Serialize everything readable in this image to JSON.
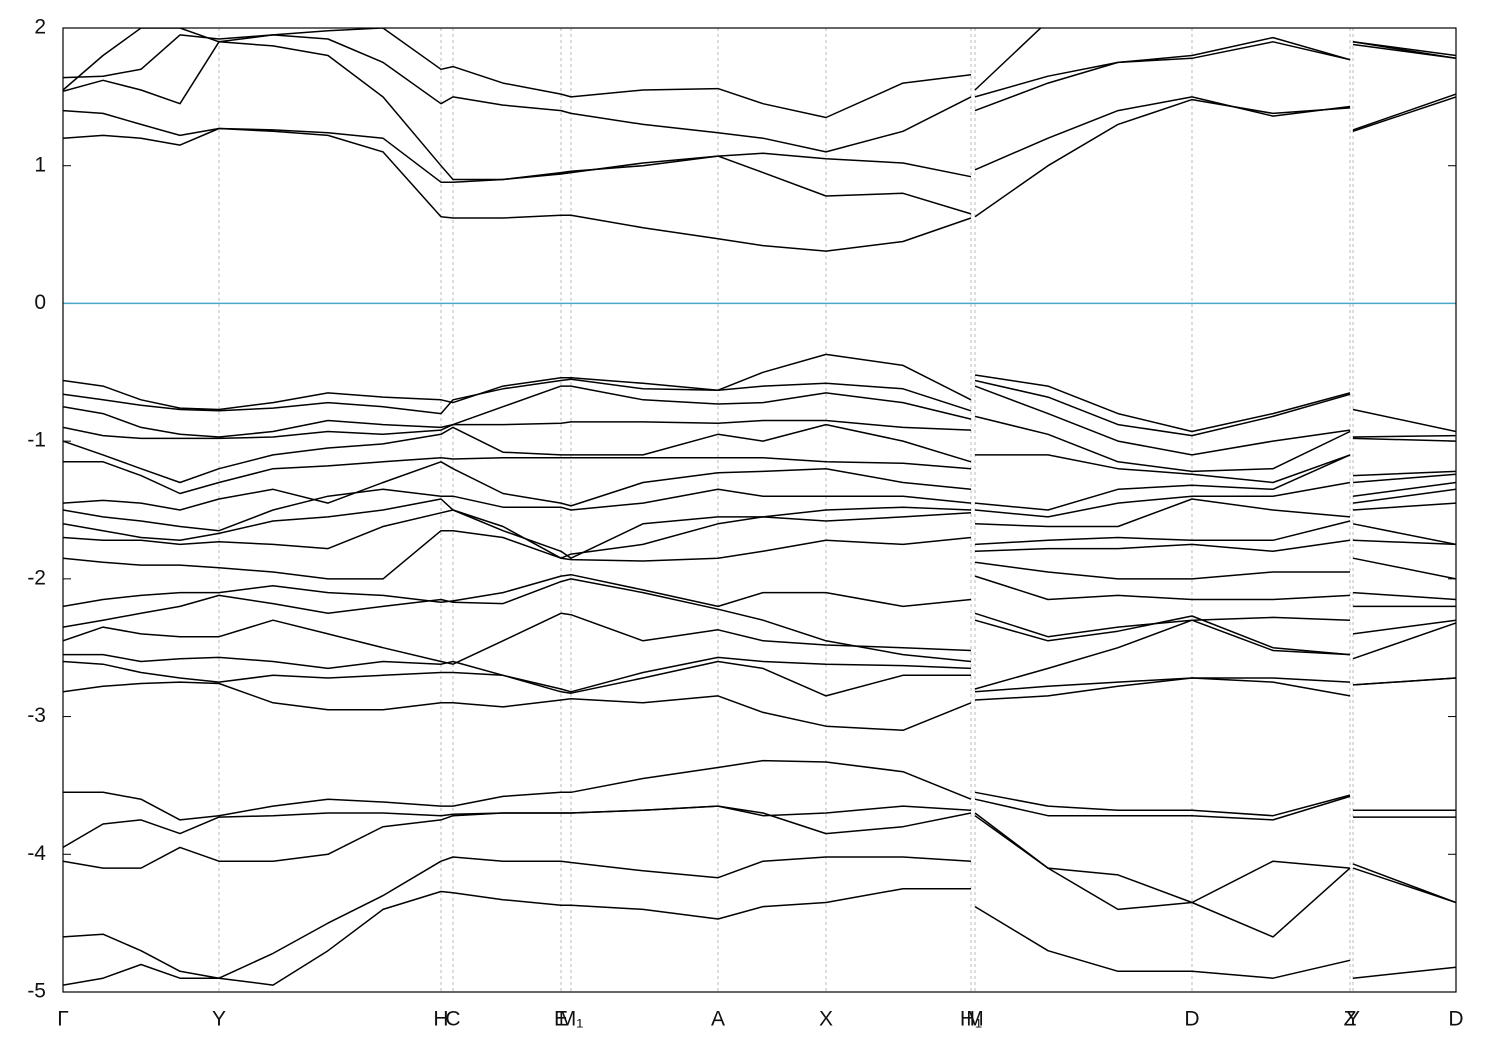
{
  "chart_data": {
    "type": "line",
    "xlim": [
      0,
      1393
    ],
    "ylim": [
      -5,
      2
    ],
    "yticks": [
      -5,
      -4,
      -3,
      -2,
      -1,
      0,
      1,
      2
    ],
    "xticks": [
      {
        "value": 0,
        "label": "Γ"
      },
      {
        "value": 156,
        "label": "Y"
      },
      {
        "value": 378,
        "label": "H"
      },
      {
        "value": 390,
        "label": "C"
      },
      {
        "value": 498,
        "label": "E"
      },
      {
        "value": 508,
        "label": "M₁"
      },
      {
        "value": 655,
        "label": "A"
      },
      {
        "value": 763,
        "label": "X"
      },
      {
        "value": 908,
        "label": "H₁"
      },
      {
        "value": 912,
        "label": "M"
      },
      {
        "value": 1129,
        "label": "D"
      },
      {
        "value": 1287,
        "label": "Z"
      },
      {
        "value": 1290,
        "label": "Y"
      },
      {
        "value": 1393,
        "label": "D"
      }
    ],
    "grid": true,
    "line_color": "#000000",
    "hline": {
      "value": 0,
      "color": "#4aa8c8"
    },
    "x": [
      0,
      40,
      78,
      117,
      156,
      210,
      265,
      320,
      378,
      390,
      440,
      498,
      508,
      580,
      655,
      700,
      763,
      840,
      908,
      910,
      912,
      985,
      1055,
      1129,
      1210,
      1287,
      1288.5,
      1290,
      1393
    ],
    "series": [
      {
        "values": [
          1.2,
          1.22,
          1.2,
          1.15,
          1.27,
          1.25,
          1.22,
          1.1,
          0.63,
          0.62,
          0.62,
          0.64,
          0.64,
          0.55,
          0.47,
          0.42,
          0.38,
          0.45,
          0.62,
          null,
          0.63,
          1.0,
          1.3,
          1.48,
          1.38,
          1.42,
          null,
          1.25,
          1.5
        ]
      },
      {
        "values": [
          1.4,
          1.38,
          1.3,
          1.22,
          1.27,
          1.26,
          1.24,
          1.2,
          0.88,
          0.88,
          0.9,
          0.94,
          0.95,
          1.02,
          1.07,
          0.95,
          0.78,
          0.8,
          0.65,
          null,
          0.97,
          1.2,
          1.4,
          1.5,
          1.36,
          1.43,
          null,
          1.26,
          1.52
        ]
      },
      {
        "values": [
          1.54,
          1.62,
          1.55,
          1.45,
          1.9,
          1.87,
          1.8,
          1.5,
          1.0,
          0.9,
          0.9,
          0.95,
          0.96,
          1.0,
          1.07,
          1.09,
          1.05,
          1.02,
          0.92,
          null,
          1.4,
          1.6,
          1.75,
          1.78,
          1.9,
          1.77,
          null,
          1.9,
          1.78
        ]
      },
      {
        "values": [
          1.64,
          1.65,
          1.7,
          1.95,
          1.92,
          1.95,
          1.92,
          1.75,
          1.45,
          1.5,
          1.44,
          1.4,
          1.38,
          1.3,
          1.24,
          1.2,
          1.1,
          1.25,
          1.5,
          null,
          1.5,
          1.65,
          1.75,
          1.8,
          1.93,
          1.77,
          null,
          1.9,
          1.8
        ]
      },
      {
        "values": [
          1.55,
          1.8,
          2.0,
          2.0,
          1.9,
          1.95,
          1.98,
          2.0,
          1.7,
          1.72,
          1.6,
          1.52,
          1.5,
          1.55,
          1.56,
          1.45,
          1.35,
          1.6,
          1.66,
          null,
          1.55,
          2.05,
          null,
          null,
          null,
          null,
          null,
          1.88,
          1.78
        ]
      },
      {
        "values": [
          -0.56,
          -0.6,
          -0.7,
          -0.76,
          -0.77,
          -0.72,
          -0.65,
          -0.68,
          -0.7,
          -0.72,
          -0.6,
          -0.54,
          -0.54,
          -0.58,
          -0.63,
          -0.5,
          -0.37,
          -0.45,
          -0.7,
          null,
          -0.52,
          -0.6,
          -0.8,
          -0.93,
          -0.8,
          -0.65,
          null,
          -0.77,
          -0.93
        ]
      },
      {
        "values": [
          -0.66,
          -0.7,
          -0.74,
          -0.77,
          -0.78,
          -0.76,
          -0.72,
          -0.75,
          -0.8,
          -0.7,
          -0.62,
          -0.56,
          -0.55,
          -0.62,
          -0.63,
          -0.6,
          -0.58,
          -0.62,
          -0.78,
          null,
          -0.56,
          -0.68,
          -0.88,
          -0.96,
          -0.82,
          -0.66,
          null,
          -0.97,
          -0.96
        ]
      },
      {
        "values": [
          -0.75,
          -0.8,
          -0.9,
          -0.95,
          -0.97,
          -0.93,
          -0.85,
          -0.88,
          -0.9,
          -0.88,
          -0.75,
          -0.6,
          -0.6,
          -0.7,
          -0.73,
          -0.72,
          -0.65,
          -0.72,
          -0.84,
          null,
          -0.6,
          -0.8,
          -1.0,
          -1.1,
          -1.0,
          -0.92,
          null,
          -0.98,
          -1.0
        ]
      },
      {
        "values": [
          -0.9,
          -0.96,
          -0.98,
          -0.98,
          -0.98,
          -0.97,
          -0.93,
          -0.95,
          -0.92,
          -0.88,
          -0.88,
          -0.87,
          -0.86,
          -0.86,
          -0.87,
          -0.85,
          -0.85,
          -0.9,
          -0.92,
          null,
          -0.82,
          -0.95,
          -1.15,
          -1.22,
          -1.2,
          -0.93,
          null,
          -1.25,
          -1.22
        ]
      },
      {
        "values": [
          -1.0,
          -1.1,
          -1.2,
          -1.3,
          -1.2,
          -1.1,
          -1.05,
          -1.02,
          -0.95,
          -0.9,
          -1.08,
          -1.1,
          -1.1,
          -1.1,
          -0.95,
          -1.0,
          -0.88,
          -1.0,
          -1.15,
          null,
          -1.1,
          -1.1,
          -1.2,
          -1.24,
          -1.3,
          -1.1,
          null,
          -1.3,
          -1.24
        ]
      },
      {
        "values": [
          -1.15,
          -1.15,
          -1.25,
          -1.38,
          -1.3,
          -1.2,
          -1.18,
          -1.15,
          -1.12,
          -1.13,
          -1.12,
          -1.12,
          -1.12,
          -1.12,
          -1.12,
          -1.12,
          -1.15,
          -1.16,
          -1.2,
          null,
          -1.45,
          -1.5,
          -1.35,
          -1.32,
          -1.35,
          -1.1,
          null,
          -1.4,
          -1.3
        ]
      },
      {
        "values": [
          -1.45,
          -1.43,
          -1.45,
          -1.5,
          -1.42,
          -1.35,
          -1.45,
          -1.3,
          -1.15,
          -1.2,
          -1.38,
          -1.45,
          -1.47,
          -1.3,
          -1.23,
          -1.22,
          -1.2,
          -1.3,
          -1.35,
          null,
          -1.5,
          -1.55,
          -1.45,
          -1.4,
          -1.4,
          -1.3,
          null,
          -1.45,
          -1.35
        ]
      },
      {
        "values": [
          -1.5,
          -1.55,
          -1.58,
          -1.62,
          -1.65,
          -1.5,
          -1.4,
          -1.35,
          -1.4,
          -1.4,
          -1.48,
          -1.48,
          -1.5,
          -1.45,
          -1.35,
          -1.4,
          -1.4,
          -1.4,
          -1.45,
          null,
          -1.6,
          -1.62,
          -1.62,
          -1.42,
          -1.5,
          -1.55,
          null,
          -1.5,
          -1.45
        ]
      },
      {
        "values": [
          -1.6,
          -1.65,
          -1.7,
          -1.72,
          -1.67,
          -1.58,
          -1.55,
          -1.5,
          -1.42,
          -1.5,
          -1.65,
          -1.8,
          -1.85,
          -1.6,
          -1.55,
          -1.55,
          -1.5,
          -1.48,
          -1.5,
          null,
          -1.75,
          -1.72,
          -1.7,
          -1.72,
          -1.72,
          -1.58,
          null,
          -1.6,
          -1.75
        ]
      },
      {
        "values": [
          -1.7,
          -1.72,
          -1.72,
          -1.75,
          -1.73,
          -1.75,
          -1.78,
          -1.62,
          -1.52,
          -1.5,
          -1.62,
          -1.85,
          -1.82,
          -1.75,
          -1.6,
          -1.55,
          -1.58,
          -1.55,
          -1.52,
          null,
          -1.8,
          -1.78,
          -1.78,
          -1.75,
          -1.8,
          -1.72,
          null,
          -1.72,
          -1.75
        ]
      },
      {
        "values": [
          -1.85,
          -1.88,
          -1.9,
          -1.9,
          -1.92,
          -1.95,
          -2.0,
          -2.0,
          -1.65,
          -1.65,
          -1.7,
          -1.85,
          -1.86,
          -1.87,
          -1.85,
          -1.8,
          -1.72,
          -1.75,
          -1.7,
          null,
          -1.88,
          -1.95,
          -2.0,
          -2.0,
          -1.95,
          -1.95,
          null,
          -1.85,
          -2.0
        ]
      },
      {
        "values": [
          -2.2,
          -2.15,
          -2.12,
          -2.1,
          -2.1,
          -2.05,
          -2.1,
          -2.12,
          -2.17,
          -2.16,
          -2.1,
          -1.98,
          -1.97,
          -2.08,
          -2.2,
          -2.1,
          -2.1,
          -2.2,
          -2.15,
          null,
          -1.98,
          -2.15,
          -2.12,
          -2.15,
          -2.15,
          -2.12,
          null,
          -2.1,
          -2.15
        ]
      },
      {
        "values": [
          -2.35,
          -2.3,
          -2.25,
          -2.2,
          -2.12,
          -2.18,
          -2.25,
          -2.2,
          -2.15,
          -2.17,
          -2.18,
          -2.02,
          -2.0,
          -2.1,
          -2.22,
          -2.3,
          -2.45,
          -2.55,
          -2.6,
          null,
          -2.25,
          -2.42,
          -2.35,
          -2.3,
          -2.28,
          -2.3,
          null,
          -2.2,
          -2.2
        ]
      },
      {
        "values": [
          -2.45,
          -2.35,
          -2.4,
          -2.42,
          -2.42,
          -2.3,
          -2.4,
          -2.5,
          -2.6,
          -2.62,
          -2.45,
          -2.25,
          -2.26,
          -2.45,
          -2.37,
          -2.45,
          -2.48,
          -2.5,
          -2.52,
          null,
          -2.3,
          -2.45,
          -2.38,
          -2.27,
          -2.5,
          -2.55,
          null,
          -2.4,
          -2.3
        ]
      },
      {
        "values": [
          -2.55,
          -2.55,
          -2.6,
          -2.58,
          -2.57,
          -2.6,
          -2.65,
          -2.6,
          -2.62,
          -2.6,
          -2.7,
          -2.8,
          -2.82,
          -2.68,
          -2.57,
          -2.6,
          -2.62,
          -2.63,
          -2.65,
          null,
          -2.8,
          -2.65,
          -2.5,
          -2.3,
          -2.52,
          -2.55,
          null,
          -2.58,
          -2.32
        ]
      },
      {
        "values": [
          -2.6,
          -2.62,
          -2.68,
          -2.72,
          -2.75,
          -2.7,
          -2.72,
          -2.7,
          -2.68,
          -2.68,
          -2.7,
          -2.82,
          -2.83,
          -2.72,
          -2.6,
          -2.65,
          -2.85,
          -2.7,
          -2.7,
          null,
          -2.82,
          -2.78,
          -2.75,
          -2.72,
          -2.72,
          -2.75,
          null,
          -2.77,
          -2.72
        ]
      },
      {
        "values": [
          -2.82,
          -2.78,
          -2.76,
          -2.75,
          -2.76,
          -2.9,
          -2.95,
          -2.95,
          -2.9,
          -2.9,
          -2.93,
          -2.88,
          -2.87,
          -2.9,
          -2.85,
          -2.97,
          -3.07,
          -3.1,
          -2.9,
          null,
          -2.88,
          -2.85,
          -2.78,
          -2.72,
          -2.75,
          -2.85,
          null,
          -2.77,
          -2.72
        ]
      },
      {
        "values": [
          -3.55,
          -3.55,
          -3.6,
          -3.75,
          -3.72,
          -3.65,
          -3.6,
          -3.62,
          -3.65,
          -3.65,
          -3.58,
          -3.55,
          -3.55,
          -3.45,
          -3.37,
          -3.32,
          -3.33,
          -3.4,
          -3.6,
          null,
          -3.55,
          -3.65,
          -3.68,
          -3.68,
          -3.72,
          -3.57,
          null,
          -3.68,
          -3.68
        ]
      },
      {
        "values": [
          -3.95,
          -3.78,
          -3.75,
          -3.85,
          -3.73,
          -3.72,
          -3.7,
          -3.7,
          -3.72,
          -3.71,
          -3.7,
          -3.7,
          -3.7,
          -3.68,
          -3.65,
          -3.7,
          -3.85,
          -3.8,
          -3.7,
          null,
          -3.6,
          -3.72,
          -3.72,
          -3.72,
          -3.75,
          -3.58,
          null,
          -3.73,
          -3.73
        ]
      },
      {
        "values": [
          -4.05,
          -4.1,
          -4.1,
          -3.95,
          -4.05,
          -4.05,
          -4.0,
          -3.8,
          -3.75,
          -3.72,
          -3.7,
          -3.7,
          -3.7,
          -3.68,
          -3.65,
          -3.72,
          -3.7,
          -3.65,
          -3.68,
          null,
          -3.7,
          -4.1,
          -4.15,
          -4.35,
          -4.05,
          -4.1,
          null,
          -4.07,
          -4.35
        ]
      },
      {
        "values": [
          -4.6,
          -4.58,
          -4.7,
          -4.85,
          -4.9,
          -4.72,
          -4.5,
          -4.3,
          -4.05,
          -4.02,
          -4.05,
          -4.05,
          -4.06,
          -4.12,
          -4.17,
          -4.05,
          -4.02,
          -4.02,
          -4.05,
          null,
          -3.72,
          -4.1,
          -4.4,
          -4.35,
          -4.6,
          -4.1,
          null,
          -4.1,
          -4.35
        ]
      },
      {
        "values": [
          -4.95,
          -4.9,
          -4.8,
          -4.9,
          -4.9,
          -4.95,
          -4.7,
          -4.4,
          -4.27,
          -4.28,
          -4.33,
          -4.37,
          -4.37,
          -4.4,
          -4.47,
          -4.38,
          -4.35,
          -4.25,
          -4.25,
          null,
          -4.38,
          -4.7,
          -4.85,
          -4.85,
          -4.9,
          -4.77,
          null,
          -4.9,
          -4.82
        ]
      }
    ]
  }
}
